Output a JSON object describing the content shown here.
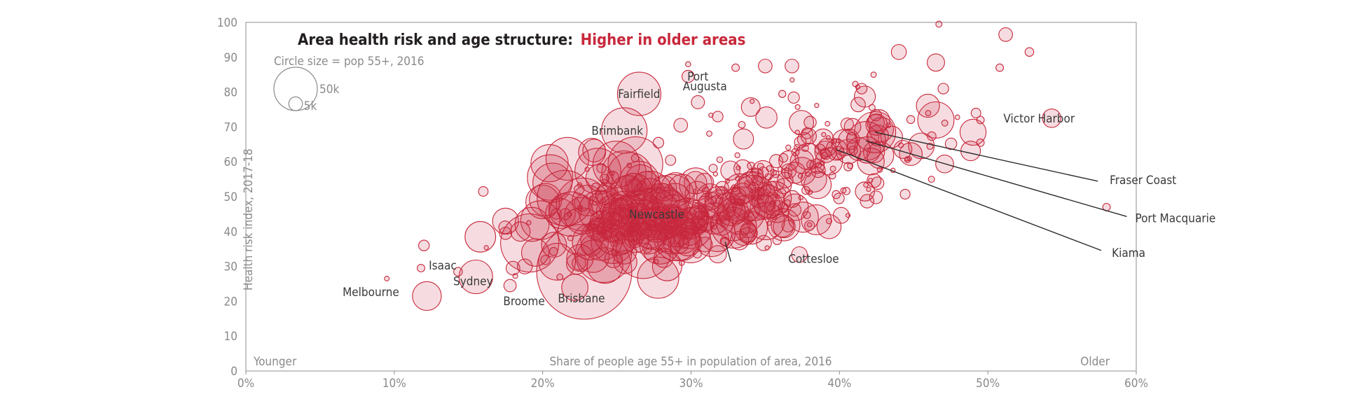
{
  "chart_data": {
    "type": "scatter",
    "title": "Area health risk and age structure:",
    "title_highlight": "Higher in older areas",
    "subtitle": "Circle size = pop 55+, 2016",
    "xlabel": "Share of people age 55+ in population of area, 2016",
    "ylabel": "Health risk index, 2017-18",
    "x_left_label": "Younger",
    "x_right_label": "Older",
    "xlim": [
      0,
      60
    ],
    "ylim": [
      0,
      100
    ],
    "x_ticks": [
      {
        "value": 0,
        "label": "0%"
      },
      {
        "value": 10,
        "label": "10%"
      },
      {
        "value": 20,
        "label": "20%"
      },
      {
        "value": 30,
        "label": "30%"
      },
      {
        "value": 40,
        "label": "40%"
      },
      {
        "value": 50,
        "label": "50%"
      },
      {
        "value": 60,
        "label": "60%"
      }
    ],
    "y_ticks": [
      {
        "value": 0,
        "label": "0"
      },
      {
        "value": 10,
        "label": "10"
      },
      {
        "value": 20,
        "label": "20"
      },
      {
        "value": 30,
        "label": "30"
      },
      {
        "value": 40,
        "label": "40"
      },
      {
        "value": 50,
        "label": "50"
      },
      {
        "value": 60,
        "label": "60"
      },
      {
        "value": 70,
        "label": "70"
      },
      {
        "value": 80,
        "label": "80"
      },
      {
        "value": 90,
        "label": "90"
      },
      {
        "value": 100,
        "label": "100"
      }
    ],
    "size_legend": [
      {
        "pop_k": 50,
        "label": "50k"
      },
      {
        "pop_k": 5,
        "label": "5k"
      }
    ],
    "labeled_points": [
      {
        "label": "Melbourne",
        "x": 12.2,
        "y": 21.5,
        "pop_k": 22
      },
      {
        "label": "Sydney",
        "x": 15.5,
        "y": 27.0,
        "pop_k": 30
      },
      {
        "label": "Isaac",
        "x": 14.3,
        "y": 28.5,
        "pop_k": 2
      },
      {
        "label": "Broome",
        "x": 17.8,
        "y": 24.5,
        "pop_k": 4
      },
      {
        "label": "Brisbane",
        "x": 22.8,
        "y": 28.5,
        "pop_k": 240
      },
      {
        "label": "Fairfield",
        "x": 26.5,
        "y": 79.5,
        "pop_k": 50
      },
      {
        "label": "Brimbank",
        "x": 25.5,
        "y": 69.0,
        "pop_k": 55
      },
      {
        "label": "Port Augusta",
        "x": 29.8,
        "y": 84.5,
        "pop_k": 4
      },
      {
        "label": "Newcastle",
        "x": 27.5,
        "y": 45.0,
        "pop_k": 70
      },
      {
        "label": "Cottesloe",
        "x": 32.3,
        "y": 37.0,
        "pop_k": 2
      },
      {
        "label": "Victor Harbor",
        "x": 54.3,
        "y": 72.5,
        "pop_k": 9
      },
      {
        "label": "Fraser Coast",
        "x": 42.4,
        "y": 68.5,
        "pop_k": 45
      },
      {
        "label": "Port Macquarie",
        "x": 41.8,
        "y": 66.0,
        "pop_k": 40
      },
      {
        "label": "Kiama",
        "x": 39.8,
        "y": 63.5,
        "pop_k": 12
      }
    ],
    "cloud_regions": [
      {
        "x_mean": 27.5,
        "x_sd": 2.6,
        "y_mean": 43.5,
        "y_sd": 5.5,
        "count": 180,
        "pop_max_k": 60
      },
      {
        "x_mean": 22.5,
        "x_sd": 2.4,
        "y_mean": 40.0,
        "y_sd": 6.5,
        "count": 55,
        "pop_max_k": 90
      },
      {
        "x_mean": 33.5,
        "x_sd": 2.3,
        "y_mean": 49.0,
        "y_sd": 5.5,
        "count": 95,
        "pop_max_k": 30
      },
      {
        "x_mean": 38.5,
        "x_sd": 2.6,
        "y_mean": 58.0,
        "y_sd": 6.0,
        "count": 75,
        "pop_max_k": 20
      },
      {
        "x_mean": 43.0,
        "x_sd": 2.8,
        "y_mean": 67.0,
        "y_sd": 7.0,
        "count": 40,
        "pop_max_k": 20
      },
      {
        "x_mean": 36.0,
        "x_sd": 3.0,
        "y_mean": 71.0,
        "y_sd": 6.0,
        "count": 22,
        "pop_max_k": 12
      },
      {
        "x_mean": 24.0,
        "x_sd": 2.0,
        "y_mean": 58.0,
        "y_sd": 5.0,
        "count": 18,
        "pop_max_k": 80
      }
    ],
    "extra_points": [
      {
        "x": 46.5,
        "y": 72.0,
        "pop_k": 35
      },
      {
        "x": 49.0,
        "y": 68.5,
        "pop_k": 18
      },
      {
        "x": 46.5,
        "y": 88.5,
        "pop_k": 8
      },
      {
        "x": 47.0,
        "y": 81.0,
        "pop_k": 3
      },
      {
        "x": 44.0,
        "y": 91.5,
        "pop_k": 6
      },
      {
        "x": 51.2,
        "y": 96.5,
        "pop_k": 5
      },
      {
        "x": 52.8,
        "y": 91.5,
        "pop_k": 2
      },
      {
        "x": 50.8,
        "y": 87.0,
        "pop_k": 1.5
      },
      {
        "x": 46.7,
        "y": 99.5,
        "pop_k": 1
      },
      {
        "x": 49.8,
        "y": 100.0,
        "pop_k": 0.6
      },
      {
        "x": 58.0,
        "y": 47.0,
        "pop_k": 1.5
      },
      {
        "x": 46.2,
        "y": 55.0,
        "pop_k": 1
      },
      {
        "x": 49.5,
        "y": 65.5,
        "pop_k": 1.5
      },
      {
        "x": 49.2,
        "y": 74.0,
        "pop_k": 2.5
      },
      {
        "x": 49.5,
        "y": 72.0,
        "pop_k": 1.5
      },
      {
        "x": 35.0,
        "y": 87.5,
        "pop_k": 5
      },
      {
        "x": 36.8,
        "y": 87.5,
        "pop_k": 5
      },
      {
        "x": 33.0,
        "y": 87.0,
        "pop_k": 1.5
      },
      {
        "x": 41.5,
        "y": 81.0,
        "pop_k": 3
      },
      {
        "x": 42.3,
        "y": 85.0,
        "pop_k": 0.8
      },
      {
        "x": 29.8,
        "y": 88.0,
        "pop_k": 0.7
      },
      {
        "x": 29.3,
        "y": 70.5,
        "pop_k": 5
      },
      {
        "x": 27.8,
        "y": 65.5,
        "pop_k": 3
      },
      {
        "x": 31.8,
        "y": 73.0,
        "pop_k": 3
      },
      {
        "x": 16.0,
        "y": 51.5,
        "pop_k": 2.5
      },
      {
        "x": 15.8,
        "y": 38.5,
        "pop_k": 25
      },
      {
        "x": 12.0,
        "y": 36.0,
        "pop_k": 3
      },
      {
        "x": 11.8,
        "y": 29.5,
        "pop_k": 1.5
      },
      {
        "x": 9.5,
        "y": 26.5,
        "pop_k": 0.6
      },
      {
        "x": 18.0,
        "y": 29.5,
        "pop_k": 5
      },
      {
        "x": 17.5,
        "y": 43.0,
        "pop_k": 18
      },
      {
        "x": 18.5,
        "y": 40.0,
        "pop_k": 10
      },
      {
        "x": 17.5,
        "y": 39.5,
        "pop_k": 4
      },
      {
        "x": 19.5,
        "y": 34.0,
        "pop_k": 20
      },
      {
        "x": 18.8,
        "y": 30.0,
        "pop_k": 6
      },
      {
        "x": 20.5,
        "y": 55.5,
        "pop_k": 55
      },
      {
        "x": 20.0,
        "y": 48.5,
        "pop_k": 30
      },
      {
        "x": 35.8,
        "y": 37.5,
        "pop_k": 2
      },
      {
        "x": 31.8,
        "y": 33.5,
        "pop_k": 8
      },
      {
        "x": 39.3,
        "y": 43.0,
        "pop_k": 0.8
      },
      {
        "x": 30.0,
        "y": 41.0,
        "pop_k": 45
      },
      {
        "x": 25.0,
        "y": 40.0,
        "pop_k": 60
      }
    ]
  }
}
